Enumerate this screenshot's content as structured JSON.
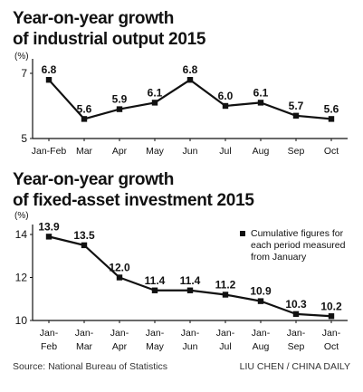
{
  "chart_data": [
    {
      "type": "line",
      "title_line1": "Year-on-year growth",
      "title_line2": "of industrial output 2015",
      "unit_label": "(%)",
      "categories": [
        "Jan-Feb",
        "Mar",
        "Apr",
        "May",
        "Jun",
        "Jul",
        "Aug",
        "Sep",
        "Oct"
      ],
      "value_labels": [
        "6.8",
        "5.6",
        "5.9",
        "6.1",
        "6.8",
        "6.0",
        "6.1",
        "5.7",
        "5.6"
      ],
      "values": [
        6.8,
        5.6,
        5.9,
        6.1,
        6.8,
        6.0,
        6.1,
        5.7,
        5.6
      ],
      "yticks": [
        "7",
        "5"
      ],
      "ylim": [
        5,
        7
      ],
      "grid": false
    },
    {
      "type": "line",
      "title_line1": "Year-on-year growth",
      "title_line2": "of fixed-asset investment 2015",
      "unit_label": "(%)",
      "categories": [
        "Jan-\nFeb",
        "Jan-\nMar",
        "Jan-\nApr",
        "Jan-\nMay",
        "Jan-\nJun",
        "Jan-\nJul",
        "Jan-\nAug",
        "Jan-\nSep",
        "Jan-\nOct"
      ],
      "value_labels": [
        "13.9",
        "13.5",
        "12.0",
        "11.4",
        "11.4",
        "11.2",
        "10.9",
        "10.3",
        "10.2"
      ],
      "values": [
        13.9,
        13.5,
        12.0,
        11.4,
        11.4,
        11.2,
        10.9,
        10.3,
        10.2
      ],
      "yticks": [
        "14",
        "12",
        "10"
      ],
      "ylim": [
        10,
        14
      ],
      "legend": "Cumulative figures for\neach period measured\nfrom January",
      "legend_position": "top-right",
      "grid": false
    }
  ],
  "footer": {
    "source": "Source: National Bureau of Statistics",
    "credit": "LIU CHEN / CHINA DAILY"
  },
  "colors": {
    "line": "#111111",
    "marker": "#111111",
    "text": "#111111"
  }
}
